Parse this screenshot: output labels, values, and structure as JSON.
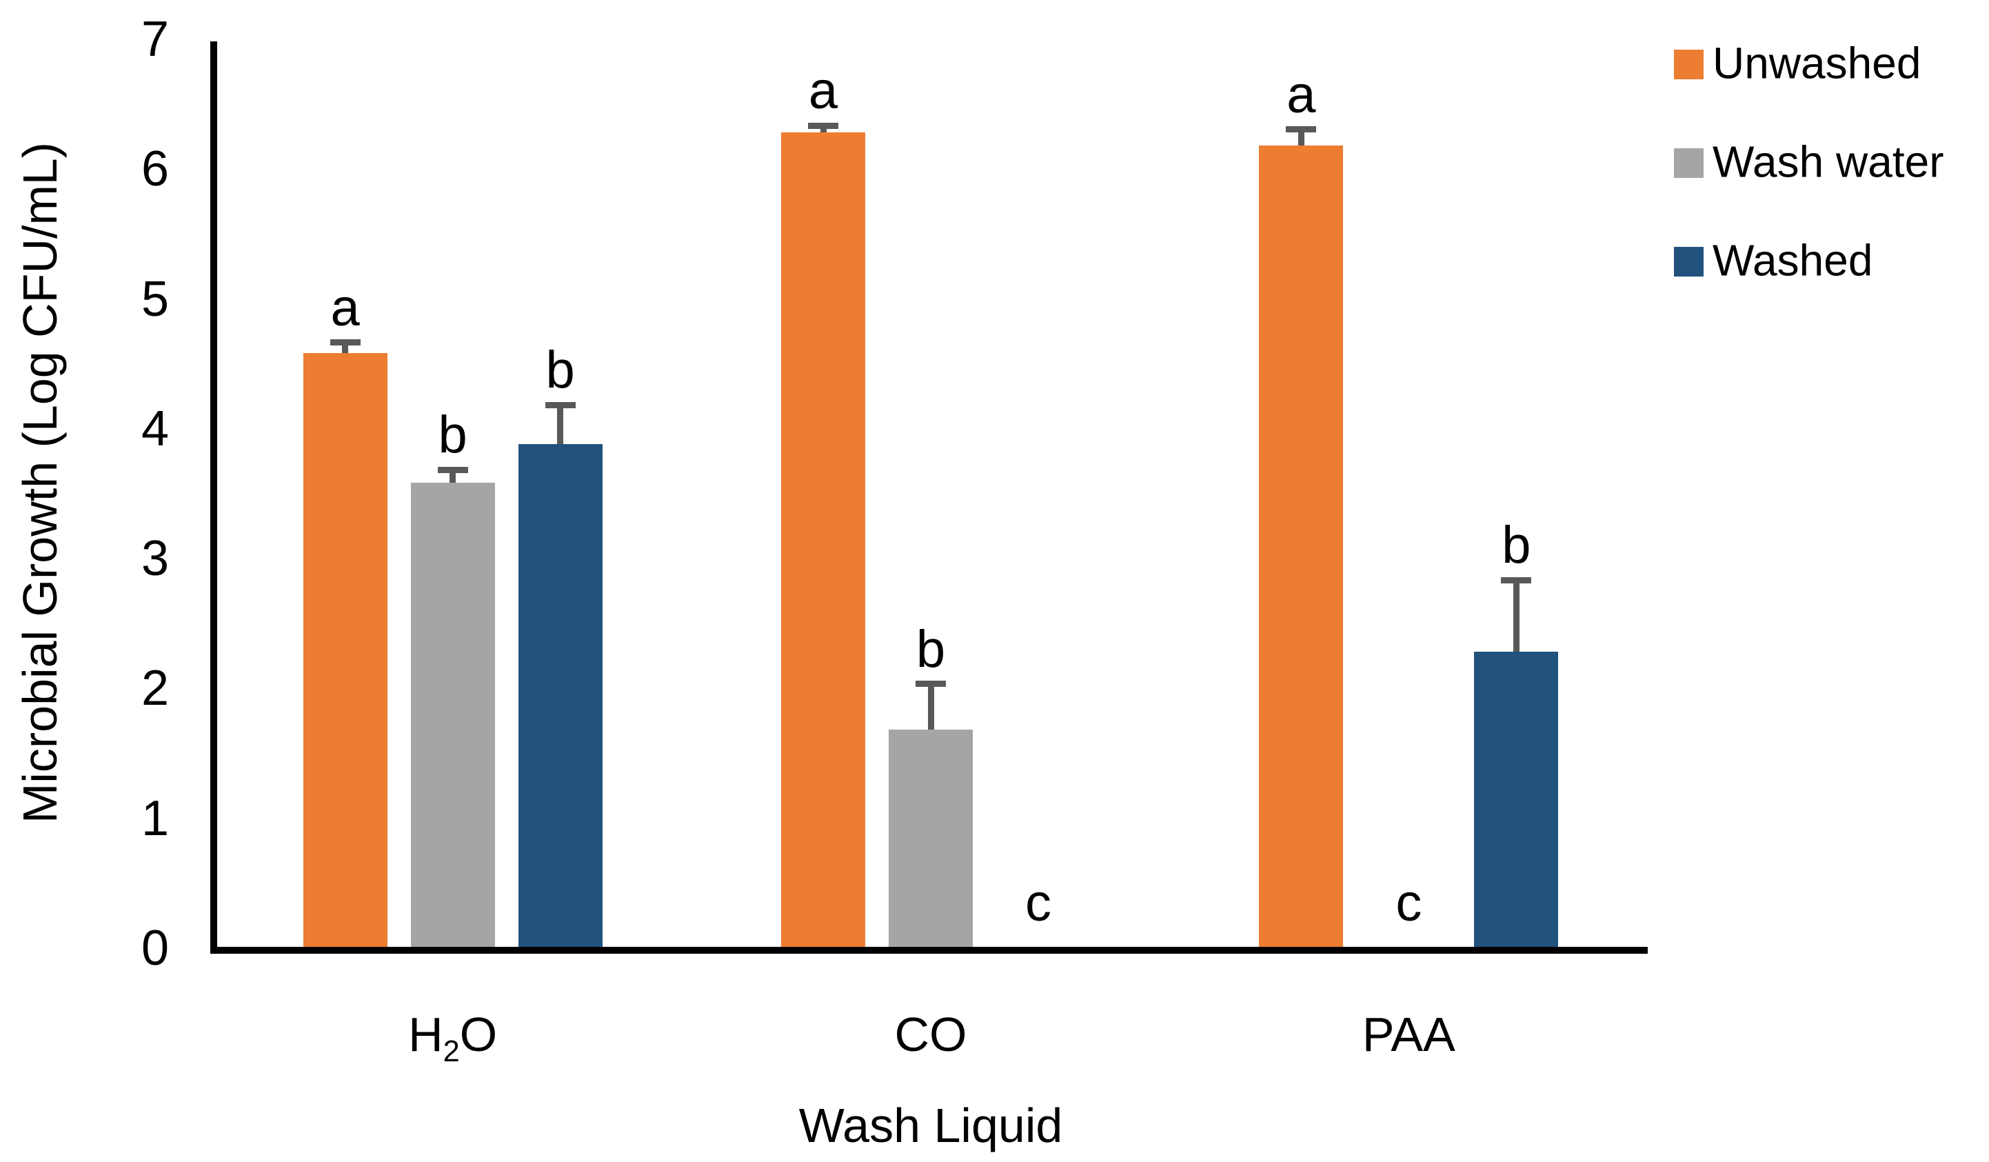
{
  "chart_data": {
    "type": "bar",
    "title": "",
    "xlabel": "Wash Liquid",
    "ylabel": "Microbial Growth (Log CFU/mL)",
    "ylim": [
      0,
      7
    ],
    "yticks": [
      0,
      1,
      2,
      3,
      4,
      5,
      6,
      7
    ],
    "grid": false,
    "legend_position": "top-right",
    "background": "#FFFFFF",
    "axis_color": "#000000",
    "error_bar_color": "#595959",
    "categories": [
      "H2O",
      "CO",
      "PAA"
    ],
    "category_display": [
      {
        "pre": "H",
        "sub": "2",
        "post": "O"
      },
      {
        "pre": "CO",
        "sub": "",
        "post": ""
      },
      {
        "pre": "PAA",
        "sub": "",
        "post": ""
      }
    ],
    "series": [
      {
        "name": "Unwashed",
        "color": "#ED7D31",
        "values": [
          4.6,
          6.3,
          6.2
        ],
        "error_plus": [
          0.08,
          0.05,
          0.12
        ],
        "sig_letters": [
          "a",
          "a",
          "a"
        ]
      },
      {
        "name": "Wash water",
        "color": "#A5A5A5",
        "values": [
          3.6,
          1.7,
          null
        ],
        "error_plus": [
          0.1,
          0.35,
          null
        ],
        "sig_letters": [
          "b",
          "b",
          "c"
        ]
      },
      {
        "name": "Washed",
        "color": "#21527D",
        "values": [
          3.9,
          null,
          2.3
        ],
        "error_plus": [
          0.3,
          null,
          0.55
        ],
        "sig_letters": [
          "b",
          "c",
          "b"
        ]
      }
    ]
  }
}
